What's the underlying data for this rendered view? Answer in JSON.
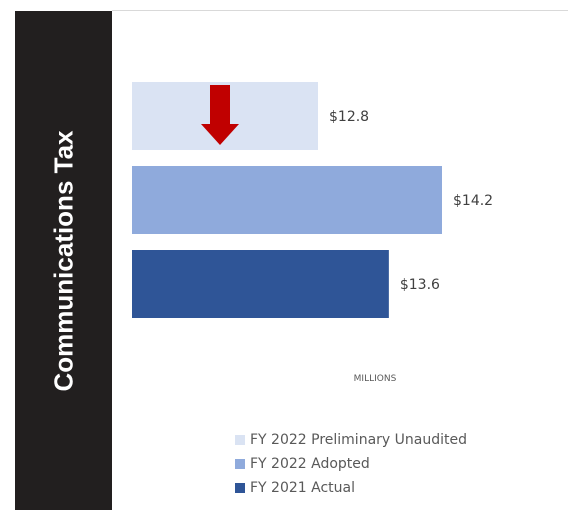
{
  "side_title": "Communications Tax",
  "colors": {
    "panel": "#221f1f",
    "arrow": "#c00000"
  },
  "chart_data": {
    "type": "bar",
    "orientation": "horizontal",
    "categories": [
      "FY 2022 Preliminary Unaudited",
      "FY 2022 Adopted",
      "FY 2021 Actual"
    ],
    "values": [
      12.8,
      14.2,
      13.6
    ],
    "data_labels": [
      "$12.8",
      "$14.2",
      "$13.6"
    ],
    "colors": [
      "#dae3f3",
      "#8faadc",
      "#2f5597"
    ],
    "xlabel": "MILLIONS",
    "xlim": [
      10.7,
      16.2
    ],
    "grid": false,
    "legend_position": "bottom",
    "annotation": "down-arrow-icon"
  }
}
